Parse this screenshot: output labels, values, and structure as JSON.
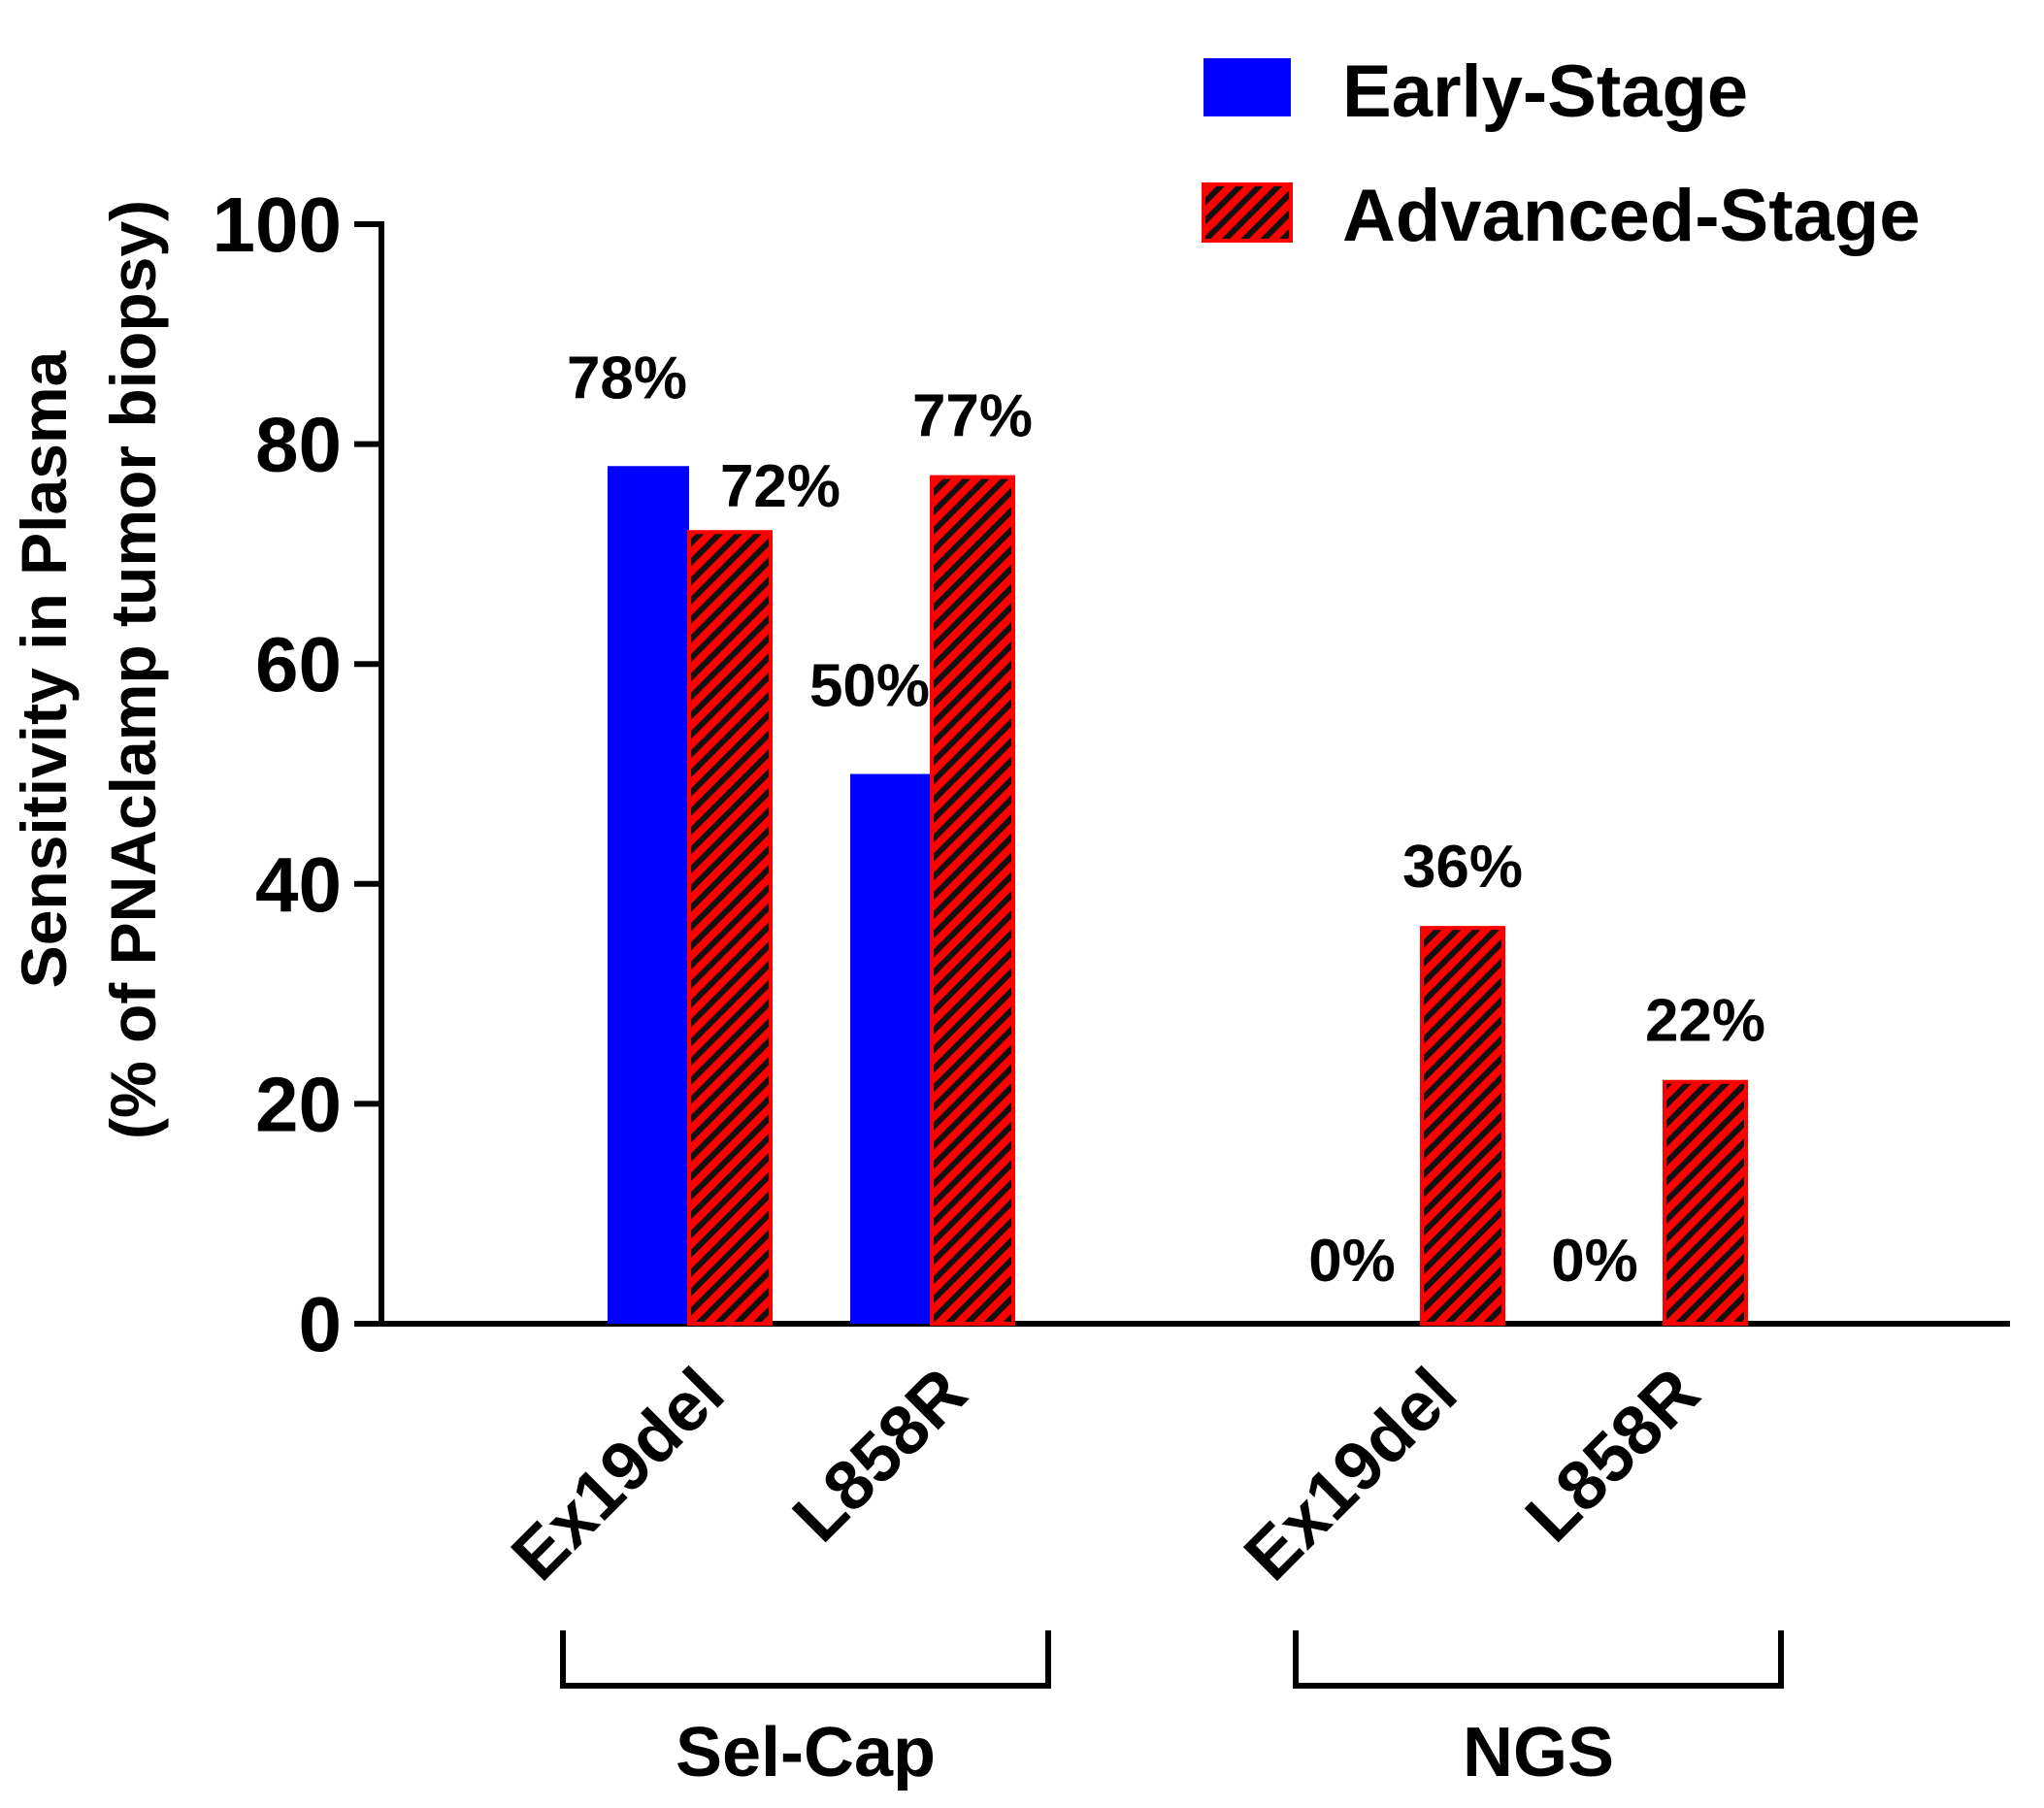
{
  "chart_data": {
    "type": "bar",
    "title": "",
    "ylabel": [
      "Sensitivity in Plasma",
      "(% of PNAclamp tumor biopsy)"
    ],
    "xlabel": "",
    "ylim": [
      0,
      100
    ],
    "yticks": [
      0,
      20,
      40,
      60,
      80,
      100
    ],
    "grid": false,
    "legend_position": "top-right",
    "groups": [
      {
        "label": "Sel-Cap",
        "categories": [
          "Ex19del",
          "L858R"
        ]
      },
      {
        "label": "NGS",
        "categories": [
          "Ex19del",
          "L858R"
        ]
      }
    ],
    "categories": [
      "Ex19del",
      "L858R",
      "Ex19del",
      "L858R"
    ],
    "series": [
      {
        "name": "Early-Stage",
        "color": "#0000ff",
        "pattern": "solid",
        "values": [
          78,
          50,
          0,
          0
        ],
        "labels": [
          "78%",
          "50%",
          "0%",
          "0%"
        ]
      },
      {
        "name": "Advanced-Stage",
        "color": "#ff0000",
        "pattern": "hatched",
        "values": [
          72,
          77,
          36,
          22
        ],
        "labels": [
          "72%",
          "77%",
          "36%",
          "22%"
        ]
      }
    ]
  }
}
